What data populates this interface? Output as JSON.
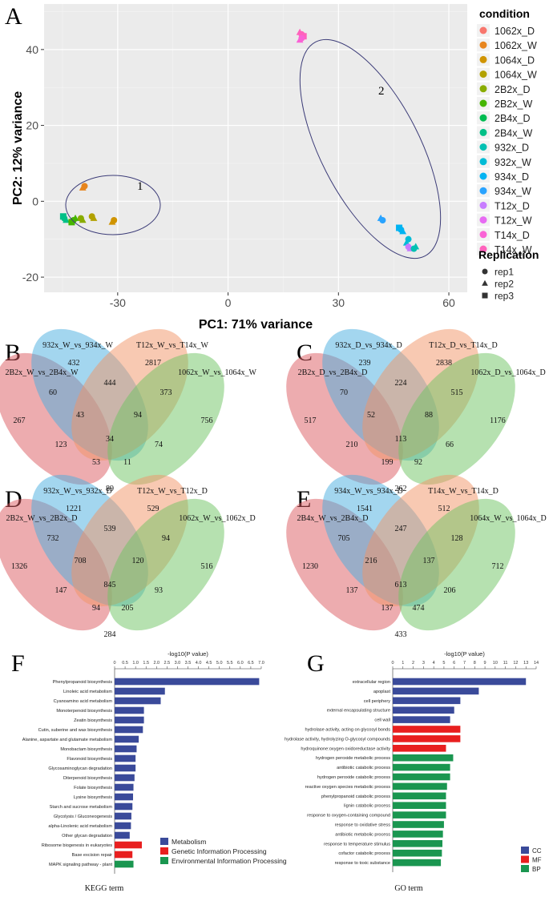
{
  "panels": {
    "A": "A",
    "B": "B",
    "C": "C",
    "D": "D",
    "E": "E",
    "F": "F",
    "G": "G"
  },
  "pca": {
    "xlabel": "PC1: 71% variance",
    "ylabel": "PC2: 12% variance",
    "x_ticks": [
      -30,
      0,
      30,
      60
    ],
    "y_ticks": [
      40,
      20,
      0,
      -20
    ],
    "xlim": [
      -50,
      65
    ],
    "ylim": [
      -24,
      52
    ],
    "cluster_labels": [
      "1",
      "2"
    ],
    "legend_title": "condition",
    "conditions": [
      {
        "name": "1062x_D",
        "color": "#F8766D"
      },
      {
        "name": "1062x_W",
        "color": "#E7851E"
      },
      {
        "name": "1064x_D",
        "color": "#D09400"
      },
      {
        "name": "1064x_W",
        "color": "#B2A100"
      },
      {
        "name": "2B2x_D",
        "color": "#89AC00"
      },
      {
        "name": "2B2x_W",
        "color": "#45B500"
      },
      {
        "name": "2B4x_D",
        "color": "#00BC51"
      },
      {
        "name": "2B4x_W",
        "color": "#00C087"
      },
      {
        "name": "932x_D",
        "color": "#00C0B2"
      },
      {
        "name": "932x_W",
        "color": "#00BCD6"
      },
      {
        "name": "934x_D",
        "color": "#00B3F2"
      },
      {
        "name": "934x_W",
        "color": "#29A3FF"
      },
      {
        "name": "T12x_D",
        "color": "#C77CFF"
      },
      {
        "name": "T12x_W",
        "color": "#E76BF3"
      },
      {
        "name": "T14x_D",
        "color": "#FA62D5"
      },
      {
        "name": "T14x_W",
        "color": "#FF62BC"
      }
    ],
    "rep_title": "Replication",
    "reps": [
      {
        "name": "rep1",
        "shape": "circle"
      },
      {
        "name": "rep2",
        "shape": "triangle"
      },
      {
        "name": "rep3",
        "shape": "square"
      }
    ]
  },
  "venns": [
    {
      "id": "B",
      "labels": [
        "2B2x_W_vs_2B4x_W",
        "932x_W_vs_934x_W",
        "T12x_W_vs_T14x_W",
        "1062x_W_vs_1064x_W"
      ],
      "values": [
        267,
        432,
        2817,
        756,
        60,
        444,
        373,
        43,
        94,
        34,
        123,
        53,
        11,
        74,
        89
      ]
    },
    {
      "id": "C",
      "labels": [
        "2B2x_D_vs_2B4x_D",
        "932x_D_vs_934x_D",
        "T12x_D_vs_T14x_D",
        "1062x_D_vs_1064x_D"
      ],
      "values": [
        517,
        239,
        2838,
        1176,
        70,
        224,
        515,
        52,
        88,
        113,
        210,
        199,
        92,
        66,
        262
      ]
    },
    {
      "id": "D",
      "labels": [
        "2B2x_W_vs_2B2x_D",
        "932x_W_vs_932x_D",
        "T12x_W_vs_T12x_D",
        "1062x_W_vs_1062x_D"
      ],
      "values": [
        1326,
        1221,
        529,
        516,
        732,
        539,
        94,
        708,
        120,
        845,
        147,
        94,
        205,
        93,
        284
      ]
    },
    {
      "id": "E",
      "labels": [
        "2B4x_W_vs_2B4x_D",
        "934x_W_vs_934x_D",
        "T14x_W_vs_T14x_D",
        "1064x_W_vs_1064x_D"
      ],
      "values": [
        1230,
        1541,
        512,
        712,
        705,
        247,
        128,
        216,
        137,
        613,
        137,
        137,
        474,
        206,
        433
      ]
    }
  ],
  "kegg": {
    "axis_title": "-log10(P value)",
    "ticks": [
      "0",
      "0.5",
      "1.0",
      "1.5",
      "2.0",
      "2.5",
      "3.0",
      "3.5",
      "4.0",
      "4.5",
      "5.0",
      "5.5",
      "6.0",
      "6.5",
      "7.0"
    ],
    "max": 7.0,
    "xlabel": "KEGG term",
    "bars": [
      {
        "label": "Phenylpropanoid biosynthesis",
        "value": 6.9,
        "cat": 0
      },
      {
        "label": "Linoleic acid metabolism",
        "value": 2.4,
        "cat": 0
      },
      {
        "label": "Cyanoamino acid metabolism",
        "value": 2.2,
        "cat": 0
      },
      {
        "label": "Monoterpenoid biosynthesis",
        "value": 1.4,
        "cat": 0
      },
      {
        "label": "Zeatin biosynthesis",
        "value": 1.4,
        "cat": 0
      },
      {
        "label": "Cutin, suberine and wax biosynthesis",
        "value": 1.35,
        "cat": 0
      },
      {
        "label": "Alanine, aspartate and glutamate metabolism",
        "value": 1.15,
        "cat": 0
      },
      {
        "label": "Monobactam biosynthesis",
        "value": 1.05,
        "cat": 0
      },
      {
        "label": "Flavonoid biosynthesis",
        "value": 1.0,
        "cat": 0
      },
      {
        "label": "Glycosaminoglycan degradation",
        "value": 1.0,
        "cat": 0
      },
      {
        "label": "Diterpenoid biosynthesis",
        "value": 0.95,
        "cat": 0
      },
      {
        "label": "Folate biosynthesis",
        "value": 0.9,
        "cat": 0
      },
      {
        "label": "Lysine biosynthesis",
        "value": 0.88,
        "cat": 0
      },
      {
        "label": "Starch and sucrose metabolism",
        "value": 0.85,
        "cat": 0
      },
      {
        "label": "Glycolysis / Gluconeogenesis",
        "value": 0.8,
        "cat": 0
      },
      {
        "label": "alpha-Linolenic acid metabolism",
        "value": 0.78,
        "cat": 0
      },
      {
        "label": "Other glycan degradation",
        "value": 0.72,
        "cat": 0
      },
      {
        "label": "Ribosome biogenesis in eukaryotes",
        "value": 1.3,
        "cat": 1
      },
      {
        "label": "Base excision repair",
        "value": 0.85,
        "cat": 1
      },
      {
        "label": "MAPK signaling pathway - plant",
        "value": 0.9,
        "cat": 2
      }
    ],
    "legend": [
      {
        "name": "Metabolism",
        "color": "#3A4A9A"
      },
      {
        "name": "Genetic Information Processing",
        "color": "#E81F1F"
      },
      {
        "name": "Environmental Information Processing",
        "color": "#1A9650"
      }
    ]
  },
  "go": {
    "axis_title": "-log10(P value)",
    "ticks": [
      "0",
      "1",
      "2",
      "3",
      "4",
      "5",
      "6",
      "7",
      "8",
      "9",
      "10",
      "11",
      "12",
      "13",
      "14"
    ],
    "max": 14,
    "xlabel": "GO term",
    "bars": [
      {
        "label": "extracellular region",
        "value": 13.0,
        "cat": 0
      },
      {
        "label": "apoplast",
        "value": 8.4,
        "cat": 0
      },
      {
        "label": "cell periphery",
        "value": 6.6,
        "cat": 0
      },
      {
        "label": "external encapsulating structure",
        "value": 6.0,
        "cat": 0
      },
      {
        "label": "cell wall",
        "value": 5.6,
        "cat": 0
      },
      {
        "label": "hydrolase activity, acting on glycosyl bonds",
        "value": 6.6,
        "cat": 1
      },
      {
        "label": "hydrolase activity, hydrolyzing O-glycosyl compounds",
        "value": 6.6,
        "cat": 1
      },
      {
        "label": "hydroquinone:oxygen oxidoreductase activity",
        "value": 5.2,
        "cat": 1
      },
      {
        "label": "hydrogen peroxide metabolic process",
        "value": 5.9,
        "cat": 2
      },
      {
        "label": "antibiotic catabolic process",
        "value": 5.6,
        "cat": 2
      },
      {
        "label": "hydrogen peroxide catabolic process",
        "value": 5.6,
        "cat": 2
      },
      {
        "label": "reactive oxygen species metabolic process",
        "value": 5.3,
        "cat": 2
      },
      {
        "label": "phenylpropanoid catabolic process",
        "value": 5.2,
        "cat": 2
      },
      {
        "label": "lignin catabolic process",
        "value": 5.2,
        "cat": 2
      },
      {
        "label": "response to oxygen-containing compound",
        "value": 5.2,
        "cat": 2
      },
      {
        "label": "response to oxidative stress",
        "value": 5.0,
        "cat": 2
      },
      {
        "label": "antibiotic metabolic process",
        "value": 4.9,
        "cat": 2
      },
      {
        "label": "response to temperature stimulus",
        "value": 4.85,
        "cat": 2
      },
      {
        "label": "cofactor catabolic process",
        "value": 4.8,
        "cat": 2
      },
      {
        "label": "response to toxic substance",
        "value": 4.7,
        "cat": 2
      }
    ],
    "legend": [
      {
        "name": "CC",
        "color": "#3A4A9A"
      },
      {
        "name": "MF",
        "color": "#E81F1F"
      },
      {
        "name": "BP",
        "color": "#1A9650"
      }
    ]
  }
}
